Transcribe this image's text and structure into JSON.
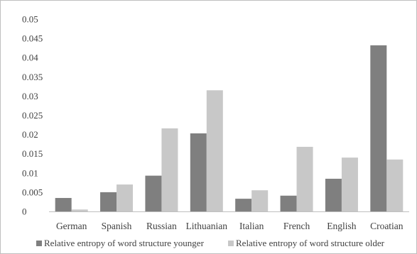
{
  "chart_data": {
    "type": "bar",
    "title": "",
    "xlabel": "",
    "ylabel": "",
    "categories": [
      "German",
      "Spanish",
      "Russian",
      "Lithuanian",
      "Italian",
      "French",
      "English",
      "Croatian"
    ],
    "series": [
      {
        "name": "Relative entropy of word structure younger",
        "color": "#7f7f7f",
        "values": [
          0.0035,
          0.005,
          0.0093,
          0.0203,
          0.0033,
          0.0041,
          0.0085,
          0.0432
        ]
      },
      {
        "name": "Relative entropy of word structure older",
        "color": "#c8c8c8",
        "values": [
          0.0005,
          0.007,
          0.0216,
          0.0315,
          0.0055,
          0.0168,
          0.014,
          0.0135
        ]
      }
    ],
    "ylim": [
      0,
      0.05
    ],
    "yticks": [
      "0",
      "0.005",
      "0.01",
      "0.015",
      "0.02",
      "0.025",
      "0.03",
      "0.035",
      "0.04",
      "0.045",
      "0.05"
    ],
    "grid": false,
    "legend": "bottom"
  }
}
